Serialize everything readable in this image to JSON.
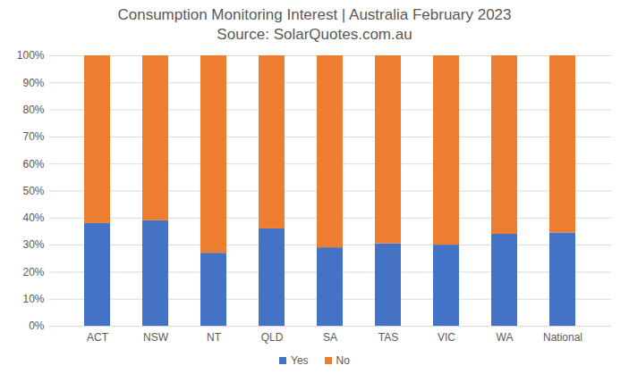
{
  "chart_data": {
    "type": "bar",
    "title": "Consumption Monitoring Interest | Australia February 2023",
    "subtitle": "Source: SolarQuotes.com.au",
    "categories": [
      "ACT",
      "NSW",
      "NT",
      "QLD",
      "SA",
      "TAS",
      "VIC",
      "WA",
      "National"
    ],
    "series": [
      {
        "name": "Yes",
        "color": "#4472c4",
        "values": [
          38,
          39,
          27,
          36,
          29,
          30.5,
          30,
          34,
          34.5
        ]
      },
      {
        "name": "No",
        "color": "#ed7d31",
        "values": [
          62,
          61,
          73,
          64,
          71,
          69.5,
          70,
          66,
          65.5
        ]
      }
    ],
    "stacked": true,
    "ylim": [
      0,
      100
    ],
    "yticks": [
      {
        "value": 0,
        "label": "0%"
      },
      {
        "value": 10,
        "label": "10%"
      },
      {
        "value": 20,
        "label": "20%"
      },
      {
        "value": 30,
        "label": "30%"
      },
      {
        "value": 40,
        "label": "40%"
      },
      {
        "value": 50,
        "label": "50%"
      },
      {
        "value": 60,
        "label": "60%"
      },
      {
        "value": 70,
        "label": "70%"
      },
      {
        "value": 80,
        "label": "80%"
      },
      {
        "value": 90,
        "label": "90%"
      },
      {
        "value": 100,
        "label": "100%"
      }
    ],
    "grid": true,
    "legend": "bottom"
  }
}
